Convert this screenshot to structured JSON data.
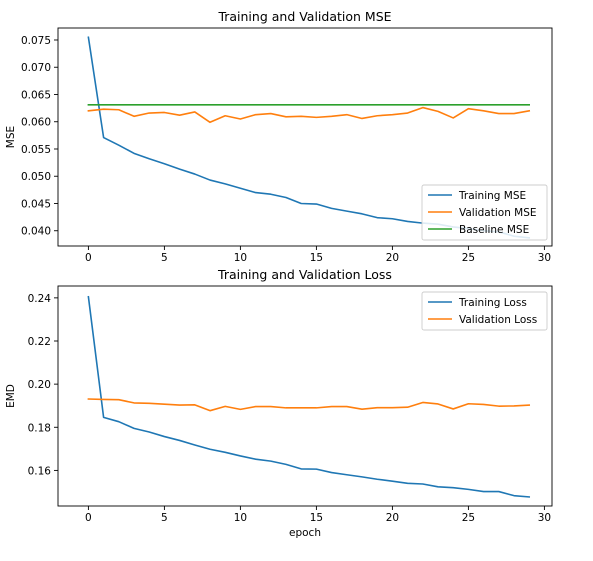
{
  "chart_data": [
    {
      "type": "line",
      "title": "Training and Validation MSE",
      "xlabel": "",
      "ylabel": "MSE",
      "xlim": [
        -2,
        30.5
      ],
      "ylim": [
        0.0372,
        0.0772
      ],
      "xticks": [
        0,
        5,
        10,
        15,
        20,
        25,
        30
      ],
      "xtick_labels": [
        "0",
        "5",
        "10",
        "15",
        "20",
        "25",
        "30"
      ],
      "yticks": [
        0.04,
        0.045,
        0.05,
        0.055,
        0.06,
        0.065,
        0.07,
        0.075
      ],
      "ytick_labels": [
        "0.040",
        "0.045",
        "0.050",
        "0.055",
        "0.060",
        "0.065",
        "0.070",
        "0.075"
      ],
      "grid": false,
      "legend": "lower-right",
      "x": [
        0,
        1,
        2,
        3,
        4,
        5,
        6,
        7,
        8,
        9,
        10,
        11,
        12,
        13,
        14,
        15,
        16,
        17,
        18,
        19,
        20,
        21,
        22,
        23,
        24,
        25,
        26,
        27,
        28,
        29
      ],
      "series": [
        {
          "name": "Training MSE",
          "color": "#1f77b4",
          "values": [
            0.0755,
            0.0571,
            0.0557,
            0.0542,
            0.0532,
            0.0523,
            0.0513,
            0.0504,
            0.0493,
            0.0486,
            0.0478,
            0.047,
            0.0467,
            0.0461,
            0.045,
            0.0449,
            0.0441,
            0.0436,
            0.0431,
            0.0424,
            0.0422,
            0.0417,
            0.0414,
            0.0412,
            0.0407,
            0.0404,
            0.04,
            0.0398,
            0.039,
            0.0387
          ]
        },
        {
          "name": "Validation MSE",
          "color": "#ff7f0e",
          "values": [
            0.062,
            0.0623,
            0.0622,
            0.061,
            0.0616,
            0.0617,
            0.0612,
            0.0618,
            0.0599,
            0.0611,
            0.0605,
            0.0613,
            0.0615,
            0.0609,
            0.061,
            0.0608,
            0.061,
            0.0613,
            0.0606,
            0.0611,
            0.0613,
            0.0616,
            0.0626,
            0.0619,
            0.0607,
            0.0624,
            0.062,
            0.0615,
            0.0615,
            0.062
          ]
        },
        {
          "name": "Baseline MSE",
          "color": "#2ca02c",
          "values": [
            0.0631,
            0.0631,
            0.0631,
            0.0631,
            0.0631,
            0.0631,
            0.0631,
            0.0631,
            0.0631,
            0.0631,
            0.0631,
            0.0631,
            0.0631,
            0.0631,
            0.0631,
            0.0631,
            0.0631,
            0.0631,
            0.0631,
            0.0631,
            0.0631,
            0.0631,
            0.0631,
            0.0631,
            0.0631,
            0.0631,
            0.0631,
            0.0631,
            0.0631,
            0.0631
          ]
        }
      ]
    },
    {
      "type": "line",
      "title": "Training and Validation Loss",
      "xlabel": "epoch",
      "ylabel": "EMD",
      "xlim": [
        -2,
        30.5
      ],
      "ylim": [
        0.1435,
        0.2455
      ],
      "xticks": [
        0,
        5,
        10,
        15,
        20,
        25,
        30
      ],
      "xtick_labels": [
        "0",
        "5",
        "10",
        "15",
        "20",
        "25",
        "30"
      ],
      "yticks": [
        0.16,
        0.18,
        0.2,
        0.22,
        0.24
      ],
      "ytick_labels": [
        "0.16",
        "0.18",
        "0.20",
        "0.22",
        "0.24"
      ],
      "grid": false,
      "legend": "top-right",
      "x": [
        0,
        1,
        2,
        3,
        4,
        5,
        6,
        7,
        8,
        9,
        10,
        11,
        12,
        13,
        14,
        15,
        16,
        17,
        18,
        19,
        20,
        21,
        22,
        23,
        24,
        25,
        26,
        27,
        28,
        29
      ],
      "series": [
        {
          "name": "Training Loss",
          "color": "#1f77b4",
          "values": [
            0.2405,
            0.1846,
            0.1826,
            0.1795,
            0.1778,
            0.1757,
            0.1739,
            0.1718,
            0.1698,
            0.1684,
            0.1667,
            0.1652,
            0.1643,
            0.1628,
            0.1607,
            0.1606,
            0.159,
            0.158,
            0.157,
            0.1559,
            0.155,
            0.154,
            0.1537,
            0.1524,
            0.152,
            0.1512,
            0.1502,
            0.1502,
            0.1483,
            0.1477
          ]
        },
        {
          "name": "Validation Loss",
          "color": "#ff7f0e",
          "values": [
            0.1931,
            0.1929,
            0.1928,
            0.1913,
            0.1911,
            0.1907,
            0.1903,
            0.1904,
            0.1877,
            0.1897,
            0.1883,
            0.1896,
            0.1896,
            0.189,
            0.189,
            0.189,
            0.1896,
            0.1896,
            0.1884,
            0.1891,
            0.1891,
            0.1893,
            0.1915,
            0.1908,
            0.1885,
            0.1909,
            0.1906,
            0.1898,
            0.1899,
            0.1903
          ]
        }
      ]
    }
  ]
}
